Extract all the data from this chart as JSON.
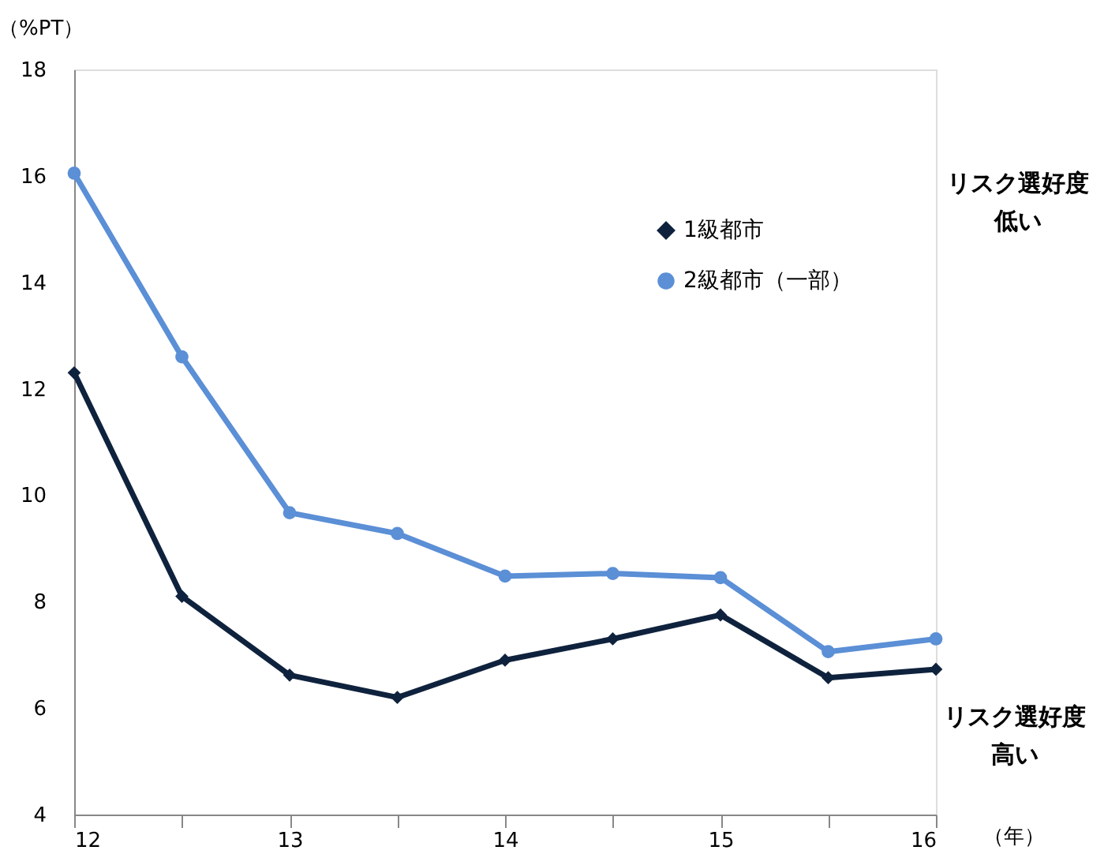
{
  "chart_data": {
    "type": "line",
    "x": [
      12,
      12.5,
      13,
      13.5,
      14,
      14.5,
      15,
      15.5,
      16
    ],
    "series": [
      {
        "name": "1級都市",
        "color": "#0f223d",
        "marker": "diamond",
        "values": [
          12.3,
          8.1,
          6.62,
          6.2,
          6.9,
          7.3,
          7.75,
          6.57,
          6.73
        ]
      },
      {
        "name": "2級都市（一部）",
        "color": "#5b8fd6",
        "marker": "circle",
        "values": [
          16.05,
          12.6,
          9.67,
          9.28,
          8.48,
          8.53,
          8.45,
          7.06,
          7.3
        ]
      }
    ],
    "xlim": [
      12,
      16
    ],
    "xticks": [
      12,
      {
        "value": 12.5,
        "label": null
      },
      13,
      {
        "value": 13.5,
        "label": null
      },
      14,
      {
        "value": 14.5,
        "label": null
      },
      15,
      {
        "value": 15.5,
        "label": null
      },
      16
    ],
    "ylim": [
      4,
      18
    ],
    "yticks": [
      4,
      6,
      8,
      10,
      12,
      14,
      16,
      18
    ],
    "ylabel": "（%PT）",
    "xlabel": "（年）",
    "annotations": [
      "リスク選好度",
      "低い",
      "リスク選好度",
      "高い"
    ],
    "grid": false,
    "legend": "top right",
    "line_style": "solid"
  }
}
